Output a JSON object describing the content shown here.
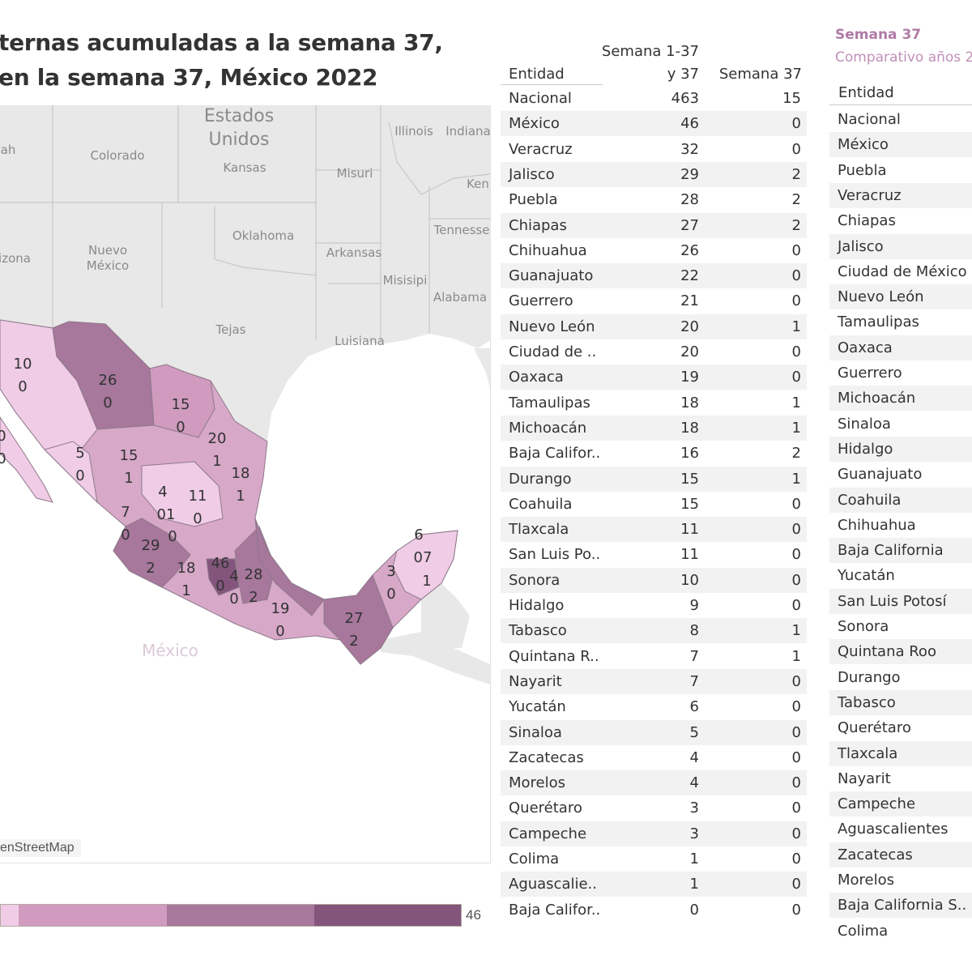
{
  "title": {
    "line1": "ternas acumuladas a la semana 37,",
    "line2": "en la semana 37, México 2022"
  },
  "map": {
    "attribution": "enStreetMap",
    "country_label": "México",
    "place_labels": [
      {
        "text": "Estados",
        "big": true
      },
      {
        "text": "Unidos",
        "big": true
      },
      {
        "text": "ah"
      },
      {
        "text": "Colorado"
      },
      {
        "text": "Kansas"
      },
      {
        "text": "Illinois"
      },
      {
        "text": "Indiana"
      },
      {
        "text": "Misuri"
      },
      {
        "text": "Ken"
      },
      {
        "text": "Oklahoma"
      },
      {
        "text": "Nuevo"
      },
      {
        "text": "México"
      },
      {
        "text": "izona"
      },
      {
        "text": "Arkansas"
      },
      {
        "text": "Tennesse"
      },
      {
        "text": "Misisipi"
      },
      {
        "text": "Alabama"
      },
      {
        "text": "Tejas"
      },
      {
        "text": "Luisiana"
      }
    ],
    "state_labels": [
      {
        "state": "Sonora",
        "total": "10",
        "week": "0"
      },
      {
        "state": "Baja California Sur",
        "total": "0",
        "week": "0"
      },
      {
        "state": "Chihuahua",
        "total": "26",
        "week": "0"
      },
      {
        "state": "Coahuila",
        "total": "15",
        "week": "0"
      },
      {
        "state": "Nuevo León",
        "total": "20",
        "week": "1"
      },
      {
        "state": "Tamaulipas",
        "total": "18",
        "week": "1"
      },
      {
        "state": "Sinaloa",
        "total": "5",
        "week": "0"
      },
      {
        "state": "Durango",
        "total": "15",
        "week": "1"
      },
      {
        "state": "Zacatecas",
        "total": "4",
        "week": "0"
      },
      {
        "state": "San Luis Potosí",
        "total": "11",
        "week": "0"
      },
      {
        "state": "Nayarit",
        "total": "7",
        "week": "0"
      },
      {
        "state": "Aguascalientes",
        "total": "01",
        "week": ""
      },
      {
        "state": "Jalisco",
        "total": "29",
        "week": "2"
      },
      {
        "state": "Michoacán",
        "total": "18",
        "week": "1"
      },
      {
        "state": "México",
        "total": "46",
        "week": "0"
      },
      {
        "state": "Morelos",
        "total": "4",
        "week": "0"
      },
      {
        "state": "Puebla",
        "total": "28",
        "week": "2"
      },
      {
        "state": "Oaxaca",
        "total": "19",
        "week": "0"
      },
      {
        "state": "Chiapas",
        "total": "27",
        "week": "2"
      },
      {
        "state": "Campeche",
        "total": "3",
        "week": "0"
      },
      {
        "state": "Yucatán",
        "total": "6",
        "week": "07"
      },
      {
        "state": "Quintana Roo",
        "total": "",
        "week": "1"
      }
    ]
  },
  "legend": {
    "max_label": "46",
    "colors": [
      "#f0cce6",
      "#d09bbf",
      "#a7779c",
      "#83557d"
    ]
  },
  "colors": {
    "land": "#e8e8e8",
    "border": "#c4c4c4",
    "state_border": "#8f7a8a",
    "accent": "#b07aa6"
  },
  "table1": {
    "headers": {
      "entidad": "Entidad",
      "col1_line1": "Semana 1-37",
      "col1_line2": "y 37",
      "col2": "Semana 37"
    },
    "rows": [
      [
        "Nacional",
        "463",
        "15"
      ],
      [
        "México",
        "46",
        "0"
      ],
      [
        "Veracruz",
        "32",
        "0"
      ],
      [
        "Jalisco",
        "29",
        "2"
      ],
      [
        "Puebla",
        "28",
        "2"
      ],
      [
        "Chiapas",
        "27",
        "2"
      ],
      [
        "Chihuahua",
        "26",
        "0"
      ],
      [
        "Guanajuato",
        "22",
        "0"
      ],
      [
        "Guerrero",
        "21",
        "0"
      ],
      [
        "Nuevo León",
        "20",
        "1"
      ],
      [
        "Ciudad de ..",
        "20",
        "0"
      ],
      [
        "Oaxaca",
        "19",
        "0"
      ],
      [
        "Tamaulipas",
        "18",
        "1"
      ],
      [
        "Michoacán",
        "18",
        "1"
      ],
      [
        "Baja Califor..",
        "16",
        "2"
      ],
      [
        "Durango",
        "15",
        "1"
      ],
      [
        "Coahuila",
        "15",
        "0"
      ],
      [
        "Tlaxcala",
        "11",
        "0"
      ],
      [
        "San Luis Po..",
        "11",
        "0"
      ],
      [
        "Sonora",
        "10",
        "0"
      ],
      [
        "Hidalgo",
        "9",
        "0"
      ],
      [
        "Tabasco",
        "8",
        "1"
      ],
      [
        "Quintana R..",
        "7",
        "1"
      ],
      [
        "Nayarit",
        "7",
        "0"
      ],
      [
        "Yucatán",
        "6",
        "0"
      ],
      [
        "Sinaloa",
        "5",
        "0"
      ],
      [
        "Zacatecas",
        "4",
        "0"
      ],
      [
        "Morelos",
        "4",
        "0"
      ],
      [
        "Querétaro",
        "3",
        "0"
      ],
      [
        "Campeche",
        "3",
        "0"
      ],
      [
        "Colima",
        "1",
        "0"
      ],
      [
        "Aguascalie..",
        "1",
        "0"
      ],
      [
        "Baja Califor..",
        "0",
        "0"
      ]
    ]
  },
  "table2": {
    "title": "Semana 37",
    "subtitle": "Comparativo años 2",
    "header": "Entidad",
    "rows": [
      "Nacional",
      "México",
      "Puebla",
      "Veracruz",
      "Chiapas",
      "Jalisco",
      "Ciudad de México",
      "Nuevo León",
      "Tamaulipas",
      "Oaxaca",
      "Guerrero",
      "Michoacán",
      "Sinaloa",
      "Hidalgo",
      "Guanajuato",
      "Coahuila",
      "Chihuahua",
      "Baja California",
      "Yucatán",
      "San Luis Potosí",
      "Sonora",
      "Quintana Roo",
      "Durango",
      "Tabasco",
      "Querétaro",
      "Tlaxcala",
      "Nayarit",
      "Campeche",
      "Aguascalientes",
      "Zacatecas",
      "Morelos",
      "Baja California S..",
      "Colima"
    ]
  }
}
